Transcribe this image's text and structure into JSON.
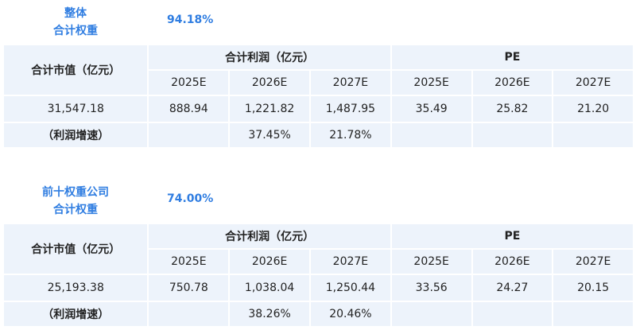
{
  "sections": [
    {
      "label_line1": "整体",
      "label_line2": "合计权重",
      "percent": "94.18%",
      "market_cap_header": "合计市值（亿元）",
      "profit_header": "合计利润（亿元）",
      "pe_header": "PE",
      "years": [
        "2025E",
        "2026E",
        "2027E"
      ],
      "market_cap": "31,547.18",
      "profits": [
        "888.94",
        "1,221.82",
        "1,487.95"
      ],
      "pe": [
        "35.49",
        "25.82",
        "21.20"
      ],
      "growth_label": "（利润增速）",
      "growth": [
        "",
        "37.45%",
        "21.78%"
      ]
    },
    {
      "label_line1": "前十权重公司",
      "label_line2": "合计权重",
      "percent": "74.00%",
      "market_cap_header": "合计市值（亿元）",
      "profit_header": "合计利润（亿元）",
      "pe_header": "PE",
      "years": [
        "2025E",
        "2026E",
        "2027E"
      ],
      "market_cap": "25,193.38",
      "profits": [
        "750.78",
        "1,038.04",
        "1,250.44"
      ],
      "pe": [
        "33.56",
        "24.27",
        "20.15"
      ],
      "growth_label": "（利润增速）",
      "growth": [
        "",
        "38.26%",
        "20.46%"
      ]
    }
  ]
}
